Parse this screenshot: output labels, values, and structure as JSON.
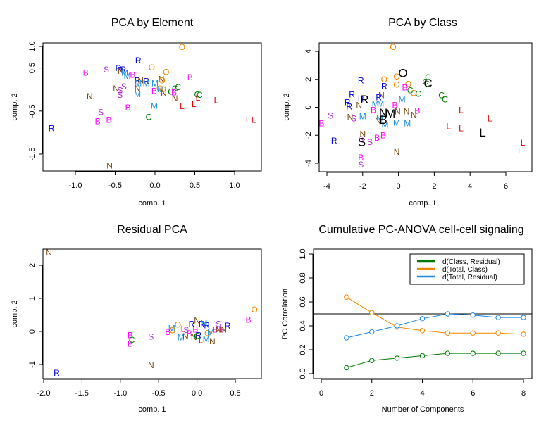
{
  "chart_data": [
    {
      "type": "scatter",
      "title": "PCA by Element",
      "xlabel": "comp. 1",
      "ylabel": "comp. 2",
      "xlim": [
        -1.4,
        1.3
      ],
      "ylim": [
        -1.9,
        1.1
      ],
      "xticks": [
        "-1.0",
        "-0.5",
        "0.0",
        "0.5",
        "1.0"
      ],
      "xtick_values": [
        -1.0,
        -0.5,
        0.0,
        0.5,
        1.0
      ],
      "yticks": [
        "1.0",
        "0.5",
        "-0.5",
        "-1.5"
      ],
      "ytick_values": [
        1.0,
        0.5,
        -0.5,
        -1.5
      ],
      "points": [
        {
          "label": "O",
          "x": 0.34,
          "y": 0.98
        },
        {
          "label": "R",
          "x": -0.21,
          "y": 0.67
        },
        {
          "label": "O",
          "x": -0.04,
          "y": 0.51
        },
        {
          "label": "O",
          "x": 0.14,
          "y": 0.4
        },
        {
          "label": "R",
          "x": -0.46,
          "y": 0.49
        },
        {
          "label": "R",
          "x": -0.44,
          "y": 0.45
        },
        {
          "label": "R",
          "x": -0.4,
          "y": 0.46
        },
        {
          "label": "N",
          "x": -0.43,
          "y": 0.43
        },
        {
          "label": "M",
          "x": -0.38,
          "y": 0.39
        },
        {
          "label": "M",
          "x": -0.35,
          "y": 0.31
        },
        {
          "label": "B",
          "x": -0.87,
          "y": 0.39
        },
        {
          "label": "S",
          "x": -0.61,
          "y": 0.46
        },
        {
          "label": "B",
          "x": -0.28,
          "y": 0.34
        },
        {
          "label": "B",
          "x": 0.44,
          "y": 0.28
        },
        {
          "label": "R",
          "x": -0.22,
          "y": 0.21
        },
        {
          "label": "N",
          "x": -0.18,
          "y": 0.21
        },
        {
          "label": "R",
          "x": -0.11,
          "y": 0.19
        },
        {
          "label": "M",
          "x": -0.21,
          "y": 0.14
        },
        {
          "label": "M",
          "x": -0.11,
          "y": 0.14
        },
        {
          "label": "M",
          "x": 0.0,
          "y": 0.14
        },
        {
          "label": "N",
          "x": 0.08,
          "y": 0.24
        },
        {
          "label": "O",
          "x": 0.09,
          "y": 0.21
        },
        {
          "label": "N",
          "x": -0.49,
          "y": 0.02
        },
        {
          "label": "S",
          "x": -0.39,
          "y": 0.07
        },
        {
          "label": "N",
          "x": -0.22,
          "y": 0.02
        },
        {
          "label": "S",
          "x": -0.44,
          "y": -0.02
        },
        {
          "label": "S",
          "x": -0.44,
          "y": -0.13
        },
        {
          "label": "M",
          "x": -0.22,
          "y": -0.11
        },
        {
          "label": "B",
          "x": -0.01,
          "y": -0.04
        },
        {
          "label": "O",
          "x": 0.06,
          "y": 0.02
        },
        {
          "label": "M",
          "x": 0.07,
          "y": 0.0
        },
        {
          "label": "O",
          "x": 0.1,
          "y": 0.0
        },
        {
          "label": "N",
          "x": 0.11,
          "y": -0.09
        },
        {
          "label": "C",
          "x": 0.2,
          "y": -0.05
        },
        {
          "label": "C",
          "x": 0.25,
          "y": 0.02
        },
        {
          "label": "C",
          "x": 0.29,
          "y": 0.05
        },
        {
          "label": "B",
          "x": 0.24,
          "y": -0.07
        },
        {
          "label": "N",
          "x": 0.25,
          "y": -0.21
        },
        {
          "label": "N",
          "x": -0.82,
          "y": -0.16
        },
        {
          "label": "C",
          "x": 0.53,
          "y": -0.12
        },
        {
          "label": "C",
          "x": 0.56,
          "y": -0.13
        },
        {
          "label": "L",
          "x": 0.54,
          "y": -0.19
        },
        {
          "label": "L",
          "x": 0.49,
          "y": -0.34
        },
        {
          "label": "L",
          "x": 0.77,
          "y": -0.25
        },
        {
          "label": "L",
          "x": 0.34,
          "y": -0.39
        },
        {
          "label": "B",
          "x": -0.34,
          "y": -0.42
        },
        {
          "label": "M",
          "x": -0.01,
          "y": -0.38
        },
        {
          "label": "S",
          "x": -0.68,
          "y": -0.53
        },
        {
          "label": "C",
          "x": -0.08,
          "y": -0.64
        },
        {
          "label": "B",
          "x": -0.72,
          "y": -0.74
        },
        {
          "label": "B",
          "x": -0.58,
          "y": -0.71
        },
        {
          "label": "L",
          "x": 1.17,
          "y": -0.7
        },
        {
          "label": "L",
          "x": 1.24,
          "y": -0.71
        },
        {
          "label": "R",
          "x": -1.3,
          "y": -0.9
        },
        {
          "label": "N",
          "x": -0.57,
          "y": -1.77
        }
      ]
    },
    {
      "type": "scatter",
      "title": "PCA by Class",
      "xlabel": "comp. 1",
      "ylabel": "comp. 2",
      "xlim": [
        -4.5,
        7.4
      ],
      "ylim": [
        -4.6,
        4.5
      ],
      "xticks": [
        "-4",
        "-2",
        "0",
        "2",
        "4",
        "6"
      ],
      "xtick_values": [
        -4,
        -2,
        0,
        2,
        4,
        6
      ],
      "yticks": [
        "4",
        "2",
        "0",
        "-2",
        "-4"
      ],
      "ytick_values": [
        4,
        2,
        0,
        -2,
        -4
      ],
      "points": [
        {
          "label": "O",
          "x": -0.3,
          "y": 4.3
        },
        {
          "label": "O",
          "x": -0.8,
          "y": 2.0
        },
        {
          "label": "O",
          "x": -0.1,
          "y": 2.2
        },
        {
          "label": "O",
          "x": -0.1,
          "y": 1.6
        },
        {
          "label": "O",
          "x": 0.55,
          "y": 1.65
        },
        {
          "label": "O",
          "x": 0.85,
          "y": 1.0
        },
        {
          "label": "R",
          "x": -2.1,
          "y": 1.9
        },
        {
          "label": "R",
          "x": -0.8,
          "y": 1.5
        },
        {
          "label": "R",
          "x": -2.6,
          "y": 0.9
        },
        {
          "label": "R",
          "x": -2.1,
          "y": 0.6
        },
        {
          "label": "R",
          "x": -1.1,
          "y": 0.7
        },
        {
          "label": "R",
          "x": -2.85,
          "y": 0.35
        },
        {
          "label": "R",
          "x": -2.75,
          "y": 0.05
        },
        {
          "label": "R",
          "x": -3.6,
          "y": -2.4
        },
        {
          "label": "C",
          "x": 1.65,
          "y": 2.15
        },
        {
          "label": "C",
          "x": 1.5,
          "y": 1.8
        },
        {
          "label": "C",
          "x": 1.6,
          "y": 1.65
        },
        {
          "label": "C",
          "x": 0.65,
          "y": 1.2
        },
        {
          "label": "C",
          "x": 1.1,
          "y": 0.95
        },
        {
          "label": "C",
          "x": 2.4,
          "y": 0.85
        },
        {
          "label": "C",
          "x": 2.6,
          "y": 0.55
        },
        {
          "label": "B",
          "x": 0.35,
          "y": 1.4
        },
        {
          "label": "B",
          "x": -0.2,
          "y": 0.15
        },
        {
          "label": "B",
          "x": -1.4,
          "y": -0.2
        },
        {
          "label": "B",
          "x": 1.05,
          "y": -0.25
        },
        {
          "label": "B",
          "x": -4.3,
          "y": -1.15
        },
        {
          "label": "B",
          "x": -1.2,
          "y": -2.2
        },
        {
          "label": "B",
          "x": -0.85,
          "y": -2.0
        },
        {
          "label": "B",
          "x": -2.1,
          "y": -3.6
        },
        {
          "label": "N",
          "x": -0.95,
          "y": 0.85
        },
        {
          "label": "N",
          "x": -2.2,
          "y": 0.15
        },
        {
          "label": "N",
          "x": -0.05,
          "y": -0.3
        },
        {
          "label": "N",
          "x": 0.45,
          "y": -0.3
        },
        {
          "label": "N",
          "x": 0.85,
          "y": -0.55
        },
        {
          "label": "N",
          "x": -2.7,
          "y": -0.7
        },
        {
          "label": "N",
          "x": -1.15,
          "y": -0.95
        },
        {
          "label": "N",
          "x": -2.0,
          "y": -1.9
        },
        {
          "label": "N",
          "x": -0.1,
          "y": -3.2
        },
        {
          "label": "M",
          "x": -1.3,
          "y": 0.25
        },
        {
          "label": "M",
          "x": -1.0,
          "y": 0.25
        },
        {
          "label": "M",
          "x": 0.2,
          "y": 0.55
        },
        {
          "label": "M",
          "x": -2.0,
          "y": -0.65
        },
        {
          "label": "M",
          "x": -1.05,
          "y": -0.75
        },
        {
          "label": "M",
          "x": -0.1,
          "y": -1.1
        },
        {
          "label": "M",
          "x": 0.5,
          "y": -1.15
        },
        {
          "label": "M",
          "x": -0.75,
          "y": -1.25
        },
        {
          "label": "S",
          "x": -3.8,
          "y": -0.6
        },
        {
          "label": "S",
          "x": -2.5,
          "y": -0.8
        },
        {
          "label": "S",
          "x": -2.1,
          "y": -2.3
        },
        {
          "label": "S",
          "x": -1.6,
          "y": -2.5
        },
        {
          "label": "S",
          "x": -2.1,
          "y": -4.1
        },
        {
          "label": "L",
          "x": 3.5,
          "y": -0.2
        },
        {
          "label": "L",
          "x": 5.1,
          "y": -0.8
        },
        {
          "label": "L",
          "x": 2.8,
          "y": -1.35
        },
        {
          "label": "L",
          "x": 3.5,
          "y": -1.5
        },
        {
          "label": "L",
          "x": 6.95,
          "y": -2.55
        },
        {
          "label": "L",
          "x": 6.8,
          "y": -3.1
        }
      ],
      "centroids": [
        {
          "label": "O",
          "x": 0.25,
          "y": 2.45
        },
        {
          "label": "C",
          "x": 1.65,
          "y": 1.7
        },
        {
          "label": "R",
          "x": -1.9,
          "y": 0.55
        },
        {
          "label": "N",
          "x": -0.85,
          "y": -0.4
        },
        {
          "label": "M",
          "x": -0.45,
          "y": -0.45
        },
        {
          "label": "B",
          "x": -0.85,
          "y": -0.9
        },
        {
          "label": "S",
          "x": -2.05,
          "y": -2.5
        },
        {
          "label": "L",
          "x": 4.7,
          "y": -1.8
        }
      ]
    },
    {
      "type": "scatter",
      "title": "Residual PCA",
      "xlabel": "comp. 1",
      "ylabel": "comp. 2",
      "xlim": [
        -2.0,
        0.85
      ],
      "ylim": [
        -1.45,
        2.5
      ],
      "xticks": [
        "-2.0",
        "-1.5",
        "-1.0",
        "-0.5",
        "0.0",
        "0.5"
      ],
      "xtick_values": [
        -2.0,
        -1.5,
        -1.0,
        -0.5,
        0.0,
        0.5
      ],
      "yticks": [
        "2",
        "1",
        "0",
        "-1"
      ],
      "ytick_values": [
        2,
        1,
        0,
        -1
      ],
      "points": [
        {
          "label": "N",
          "x": -1.93,
          "y": 2.38
        },
        {
          "label": "R",
          "x": -1.83,
          "y": -1.25
        },
        {
          "label": "O",
          "x": 0.75,
          "y": 0.66
        },
        {
          "label": "B",
          "x": 0.67,
          "y": 0.35
        },
        {
          "label": "B",
          "x": -0.87,
          "y": -0.12
        },
        {
          "label": "C",
          "x": -0.85,
          "y": -0.25
        },
        {
          "label": "B",
          "x": -0.87,
          "y": -0.37
        },
        {
          "label": "S",
          "x": -0.6,
          "y": -0.16
        },
        {
          "label": "N",
          "x": -0.6,
          "y": -1.02
        },
        {
          "label": "O",
          "x": -0.25,
          "y": 0.2
        },
        {
          "label": "M",
          "x": -0.33,
          "y": 0.1
        },
        {
          "label": "O",
          "x": -0.32,
          "y": 0.03
        },
        {
          "label": "B",
          "x": -0.38,
          "y": -0.02
        },
        {
          "label": "M",
          "x": -0.21,
          "y": -0.18
        },
        {
          "label": "N",
          "x": -0.15,
          "y": -0.15
        },
        {
          "label": "L",
          "x": -0.18,
          "y": 0.07
        },
        {
          "label": "S",
          "x": -0.14,
          "y": 0.04
        },
        {
          "label": "B",
          "x": -0.1,
          "y": -0.06
        },
        {
          "label": "N",
          "x": 0.0,
          "y": 0.33
        },
        {
          "label": "R",
          "x": -0.07,
          "y": 0.22
        },
        {
          "label": "R",
          "x": 0.06,
          "y": 0.22
        },
        {
          "label": "R",
          "x": 0.13,
          "y": 0.18
        },
        {
          "label": "M",
          "x": 0.09,
          "y": 0.25
        },
        {
          "label": "B",
          "x": -0.02,
          "y": 0.05
        },
        {
          "label": "R",
          "x": 0.02,
          "y": -0.12
        },
        {
          "label": "N",
          "x": -0.04,
          "y": -0.17
        },
        {
          "label": "C",
          "x": 0.0,
          "y": -0.14
        },
        {
          "label": "L",
          "x": 0.05,
          "y": -0.27
        },
        {
          "label": "O",
          "x": 0.14,
          "y": -0.05
        },
        {
          "label": "M",
          "x": 0.12,
          "y": -0.23
        },
        {
          "label": "M",
          "x": 0.18,
          "y": -0.03
        },
        {
          "label": "N",
          "x": 0.2,
          "y": -0.3
        },
        {
          "label": "S",
          "x": 0.28,
          "y": 0.22
        },
        {
          "label": "R",
          "x": 0.4,
          "y": 0.17
        },
        {
          "label": "B",
          "x": 0.24,
          "y": 0.05
        },
        {
          "label": "B",
          "x": 0.32,
          "y": 0.05
        },
        {
          "label": "N",
          "x": 0.28,
          "y": 0.05
        },
        {
          "label": "N",
          "x": 0.35,
          "y": 0.05
        }
      ]
    },
    {
      "type": "line",
      "title": "Cumulative PC-ANOVA cell-cell signaling",
      "xlabel": "Number of Components",
      "ylabel": "PC Correlation",
      "xlim": [
        -0.3,
        8.4
      ],
      "ylim": [
        -0.03,
        1.03
      ],
      "xticks": [
        "0",
        "2",
        "4",
        "6",
        "8"
      ],
      "xtick_values": [
        0,
        2,
        4,
        6,
        8
      ],
      "yticks": [
        "0.0",
        "0.2",
        "0.4",
        "0.6",
        "0.8",
        "1.0"
      ],
      "ytick_values": [
        0.0,
        0.2,
        0.4,
        0.6,
        0.8,
        1.0
      ],
      "x": [
        1,
        2,
        3,
        4,
        5,
        6,
        7,
        8
      ],
      "hline": 0.5,
      "legend_position": "top-right",
      "series": [
        {
          "name": "d(Class, Residual)",
          "color": "#007a00",
          "values": [
            0.05,
            0.11,
            0.13,
            0.15,
            0.17,
            0.17,
            0.17,
            0.17
          ]
        },
        {
          "name": "d(Total, Class)",
          "color": "#f28500",
          "values": [
            0.64,
            0.51,
            0.39,
            0.36,
            0.34,
            0.34,
            0.34,
            0.33
          ]
        },
        {
          "name": "d(Total, Residual)",
          "color": "#1e88e5",
          "values": [
            0.3,
            0.35,
            0.4,
            0.46,
            0.5,
            0.49,
            0.47,
            0.47
          ]
        }
      ]
    }
  ],
  "label_colors": {
    "O": "#f28500",
    "R": "#0000e0",
    "N": "#7a4a10",
    "M": "#1e90e0",
    "B": "#ff00ff",
    "S": "#b030d0",
    "C": "#007a00",
    "L": "#e00000"
  }
}
